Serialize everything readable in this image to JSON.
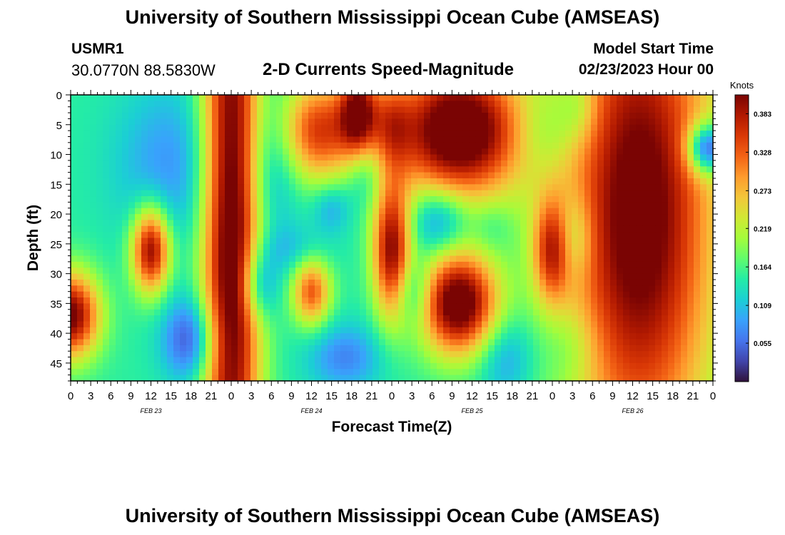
{
  "header": {
    "title": "University of Southern Mississippi Ocean Cube (AMSEAS)",
    "station_id": "USMR1",
    "coordinates": "30.0770N  88.5830W",
    "subtitle": "2-D Currents Speed-Magnitude",
    "start_label": "Model Start Time",
    "start_value": "02/23/2023 Hour 00"
  },
  "footer": {
    "title": "University of Southern Mississippi Ocean Cube (AMSEAS)"
  },
  "colors": {
    "colormap": [
      "#30123b",
      "#4145ab",
      "#4675ed",
      "#39a2fc",
      "#1bcfd4",
      "#24eca6",
      "#61fc6c",
      "#a4fc3b",
      "#d1e834",
      "#f3c63a",
      "#fe9b2d",
      "#f36315",
      "#d93806",
      "#b11901",
      "#7a0403"
    ]
  },
  "chart_data": {
    "type": "heatmap",
    "title": "2-D Currents Speed-Magnitude",
    "xlabel": "Forecast Time(Z)",
    "ylabel": "Depth (ft)",
    "x_unit": "hours from 02/23/2023 00Z",
    "xlim": [
      0,
      96
    ],
    "ylim": [
      0,
      48
    ],
    "y_ticks": [
      0,
      5,
      10,
      15,
      20,
      25,
      30,
      35,
      40,
      45
    ],
    "x_tick_labels": [
      "0",
      "3",
      "6",
      "9",
      "12",
      "15",
      "18",
      "21",
      "0",
      "3",
      "6",
      "9",
      "12",
      "15",
      "18",
      "21",
      "0",
      "3",
      "6",
      "9",
      "12",
      "15",
      "18",
      "21",
      "0",
      "3",
      "6",
      "9",
      "12",
      "15",
      "18",
      "21",
      "0"
    ],
    "date_labels": [
      {
        "text": "FEB 23",
        "hour": 12
      },
      {
        "text": "FEB 24",
        "hour": 36
      },
      {
        "text": "FEB 25",
        "hour": 60
      },
      {
        "text": "FEB 26",
        "hour": 84
      }
    ],
    "colorbar": {
      "label": "Knots",
      "range": [
        0.0,
        0.41
      ],
      "ticks": [
        "0.383",
        "0.328",
        "0.273",
        "0.219",
        "0.164",
        "0.109",
        "0.055"
      ],
      "tick_values": [
        0.383,
        0.328,
        0.273,
        0.219,
        0.164,
        0.109,
        0.055
      ]
    },
    "features": [
      {
        "t": 0,
        "d": 37,
        "st": 3,
        "sd": 5,
        "v": 0.27
      },
      {
        "t": 12,
        "d": 26,
        "st": 2,
        "sd": 5,
        "v": 0.26
      },
      {
        "t": 15,
        "d": 12,
        "st": 6,
        "sd": 10,
        "v": -0.07
      },
      {
        "t": 18,
        "d": 41,
        "st": 3,
        "sd": 5,
        "v": -0.12
      },
      {
        "t": 24,
        "d": 22,
        "st": 3,
        "sd": 45,
        "v": 0.3
      },
      {
        "t": 28,
        "d": 32,
        "st": 2,
        "sd": 4,
        "v": -0.1
      },
      {
        "t": 30,
        "d": 12,
        "st": 3,
        "sd": 9,
        "v": -0.06
      },
      {
        "t": 33,
        "d": 26,
        "st": 4,
        "sd": 3,
        "v": -0.04
      },
      {
        "t": 37,
        "d": 6,
        "st": 4,
        "sd": 6,
        "v": 0.2
      },
      {
        "t": 36,
        "d": 33,
        "st": 2,
        "sd": 4,
        "v": 0.18
      },
      {
        "t": 39,
        "d": 19,
        "st": 2,
        "sd": 3,
        "v": -0.06
      },
      {
        "t": 41,
        "d": 44,
        "st": 4,
        "sd": 4,
        "v": -0.08
      },
      {
        "t": 43,
        "d": 3,
        "st": 2,
        "sd": 5,
        "v": 0.22
      },
      {
        "t": 44,
        "d": 13,
        "st": 2,
        "sd": 4,
        "v": -0.05
      },
      {
        "t": 48,
        "d": 26,
        "st": 2,
        "sd": 8,
        "v": 0.25
      },
      {
        "t": 48,
        "d": 5,
        "st": 2,
        "sd": 5,
        "v": 0.1
      },
      {
        "t": 51,
        "d": 33,
        "st": 2,
        "sd": 4,
        "v": -0.08
      },
      {
        "t": 55,
        "d": 21,
        "st": 3,
        "sd": 4,
        "v": -0.1
      },
      {
        "t": 58,
        "d": 6,
        "st": 7,
        "sd": 8,
        "v": 0.32
      },
      {
        "t": 58,
        "d": 35,
        "st": 4,
        "sd": 6,
        "v": 0.3
      },
      {
        "t": 63,
        "d": 22,
        "st": 2,
        "sd": 3,
        "v": -0.03
      },
      {
        "t": 65,
        "d": 44,
        "st": 3,
        "sd": 5,
        "v": -0.07
      },
      {
        "t": 71,
        "d": 6,
        "st": 4,
        "sd": 5,
        "v": -0.05
      },
      {
        "t": 72,
        "d": 26,
        "st": 2,
        "sd": 6,
        "v": 0.18
      },
      {
        "t": 75,
        "d": 24,
        "st": 2,
        "sd": 5,
        "v": -0.08
      },
      {
        "t": 76,
        "d": 2,
        "st": 2,
        "sd": 4,
        "v": -0.05
      },
      {
        "t": 75,
        "d": 42,
        "st": 3,
        "sd": 5,
        "v": -0.04
      },
      {
        "t": 85,
        "d": 20,
        "st": 8,
        "sd": 30,
        "v": 0.29
      },
      {
        "t": 95,
        "d": 9,
        "st": 2,
        "sd": 3,
        "v": -0.2
      }
    ]
  }
}
